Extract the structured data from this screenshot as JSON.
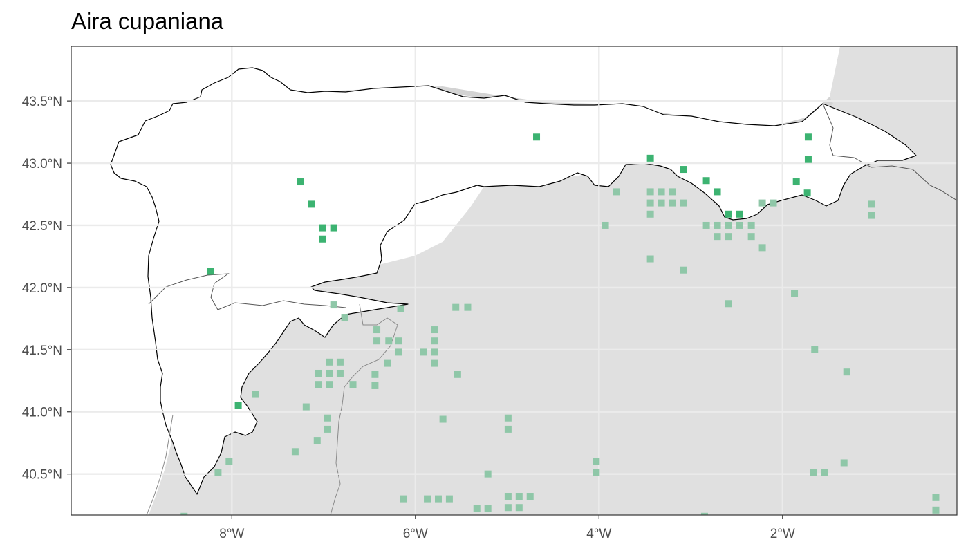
{
  "chart_data": {
    "type": "scatter",
    "title": "Aira cupaniana",
    "xlabel": "",
    "ylabel": "",
    "xlim": [
      -9.75,
      -0.1
    ],
    "ylim": [
      40.17,
      43.94
    ],
    "grid": true,
    "x_ticks": [
      {
        "value": -8,
        "label": "8°W"
      },
      {
        "value": -6,
        "label": "6°W"
      },
      {
        "value": -4,
        "label": "4°W"
      },
      {
        "value": -2,
        "label": "2°W"
      }
    ],
    "y_ticks": [
      {
        "value": 43.5,
        "label": "43.5°N"
      },
      {
        "value": 43.0,
        "label": "43.0°N"
      },
      {
        "value": 42.5,
        "label": "42.5°N"
      },
      {
        "value": 42.0,
        "label": "42.0°N"
      },
      {
        "value": 41.5,
        "label": "41.5°N"
      },
      {
        "value": 41.0,
        "label": "41.0°N"
      },
      {
        "value": 40.5,
        "label": "40.5°N"
      }
    ],
    "colors": {
      "inside": "#3cb371",
      "outside": "#8fc7a8",
      "background_land": "#e0e0e0",
      "study_area": "#ffffff",
      "grid": "#ebebeb"
    },
    "series": [
      {
        "key": "inside",
        "points": [
          [
            -4.68,
            43.21
          ],
          [
            -3.44,
            43.04
          ],
          [
            -3.08,
            42.95
          ],
          [
            -7.25,
            42.85
          ],
          [
            -7.13,
            42.67
          ],
          [
            -7.01,
            42.48
          ],
          [
            -6.89,
            42.48
          ],
          [
            -7.01,
            42.39
          ],
          [
            -8.23,
            42.13
          ],
          [
            -7.93,
            41.05
          ],
          [
            -1.72,
            43.21
          ],
          [
            -1.72,
            43.03
          ],
          [
            -1.85,
            42.85
          ],
          [
            -1.73,
            42.76
          ],
          [
            -2.59,
            42.59
          ],
          [
            -2.47,
            42.59
          ],
          [
            -2.83,
            42.86
          ],
          [
            -2.71,
            42.77
          ]
        ]
      },
      {
        "key": "outside",
        "points": [
          [
            -3.81,
            42.77
          ],
          [
            -3.44,
            42.77
          ],
          [
            -3.32,
            42.77
          ],
          [
            -3.2,
            42.77
          ],
          [
            -3.44,
            42.68
          ],
          [
            -3.32,
            42.68
          ],
          [
            -3.2,
            42.68
          ],
          [
            -3.08,
            42.68
          ],
          [
            -3.44,
            42.59
          ],
          [
            -3.93,
            42.5
          ],
          [
            -2.1,
            42.68
          ],
          [
            -2.22,
            42.68
          ],
          [
            -2.83,
            42.5
          ],
          [
            -2.71,
            42.5
          ],
          [
            -2.59,
            42.5
          ],
          [
            -2.47,
            42.5
          ],
          [
            -2.34,
            42.5
          ],
          [
            -2.71,
            42.41
          ],
          [
            -2.59,
            42.41
          ],
          [
            -2.34,
            42.41
          ],
          [
            -2.22,
            42.32
          ],
          [
            -3.44,
            42.23
          ],
          [
            -3.08,
            42.14
          ],
          [
            -1.03,
            42.67
          ],
          [
            -1.03,
            42.58
          ],
          [
            -1.87,
            41.95
          ],
          [
            -2.59,
            41.87
          ],
          [
            -1.65,
            41.5
          ],
          [
            -1.3,
            41.32
          ],
          [
            -6.89,
            41.86
          ],
          [
            -6.77,
            41.76
          ],
          [
            -6.16,
            41.83
          ],
          [
            -5.56,
            41.84
          ],
          [
            -5.43,
            41.84
          ],
          [
            -6.42,
            41.66
          ],
          [
            -6.42,
            41.57
          ],
          [
            -6.29,
            41.57
          ],
          [
            -6.18,
            41.57
          ],
          [
            -6.18,
            41.48
          ],
          [
            -5.79,
            41.66
          ],
          [
            -5.79,
            41.57
          ],
          [
            -5.79,
            41.48
          ],
          [
            -5.91,
            41.48
          ],
          [
            -5.79,
            41.39
          ],
          [
            -6.3,
            41.39
          ],
          [
            -6.44,
            41.3
          ],
          [
            -6.44,
            41.21
          ],
          [
            -5.54,
            41.3
          ],
          [
            -6.94,
            41.4
          ],
          [
            -6.82,
            41.4
          ],
          [
            -7.06,
            41.31
          ],
          [
            -6.94,
            41.31
          ],
          [
            -6.82,
            41.31
          ],
          [
            -7.06,
            41.22
          ],
          [
            -6.94,
            41.22
          ],
          [
            -6.68,
            41.22
          ],
          [
            -7.74,
            41.14
          ],
          [
            -7.19,
            41.04
          ],
          [
            -6.96,
            40.95
          ],
          [
            -6.96,
            40.86
          ],
          [
            -7.07,
            40.77
          ],
          [
            -5.7,
            40.94
          ],
          [
            -4.99,
            40.95
          ],
          [
            -4.99,
            40.86
          ],
          [
            -7.31,
            40.68
          ],
          [
            -8.03,
            40.6
          ],
          [
            -8.15,
            40.51
          ],
          [
            -4.03,
            40.6
          ],
          [
            -4.03,
            40.51
          ],
          [
            -5.21,
            40.5
          ],
          [
            -1.66,
            40.51
          ],
          [
            -1.54,
            40.51
          ],
          [
            -1.33,
            40.59
          ],
          [
            -6.13,
            40.3
          ],
          [
            -5.87,
            40.3
          ],
          [
            -5.75,
            40.3
          ],
          [
            -5.63,
            40.3
          ],
          [
            -4.99,
            40.32
          ],
          [
            -4.87,
            40.32
          ],
          [
            -4.75,
            40.32
          ],
          [
            -5.33,
            40.22
          ],
          [
            -5.21,
            40.22
          ],
          [
            -4.99,
            40.23
          ],
          [
            -4.87,
            40.23
          ],
          [
            -0.33,
            40.31
          ],
          [
            -0.33,
            40.21
          ],
          [
            -8.52,
            40.16
          ],
          [
            -2.85,
            40.16
          ]
        ]
      }
    ]
  }
}
